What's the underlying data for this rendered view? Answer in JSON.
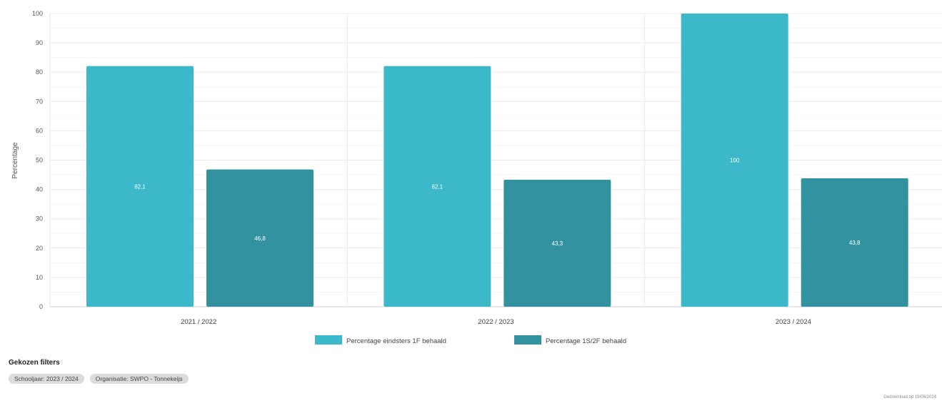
{
  "chart_data": {
    "type": "bar",
    "categories": [
      "2021 / 2022",
      "2022 / 2023",
      "2023 / 2024"
    ],
    "series": [
      {
        "name": "Percentage eindsters 1F behaald",
        "values": [
          82.1,
          82.1,
          100
        ],
        "labels": [
          "82,1",
          "82,1",
          "100"
        ],
        "color": "#3bb8c9"
      },
      {
        "name": "Percentage 1S/2F behaald",
        "values": [
          46.8,
          43.3,
          43.8
        ],
        "labels": [
          "46,8",
          "43,3",
          "43,8"
        ],
        "color": "#33929f"
      }
    ],
    "ylabel": "Percentage",
    "xlabel": "",
    "ylim": [
      0,
      100
    ],
    "yticks": [
      0,
      10,
      20,
      30,
      40,
      50,
      60,
      70,
      80,
      90,
      100
    ],
    "grid": true,
    "legend": "bottom-center"
  },
  "filters": {
    "title": "Gekozen filters",
    "chips": [
      "Schooljaar: 2023 / 2024",
      "Organisatie: SWPO - Tonnekeijs"
    ]
  },
  "footer": {
    "note": "Gedownload op 19/06/2024"
  }
}
